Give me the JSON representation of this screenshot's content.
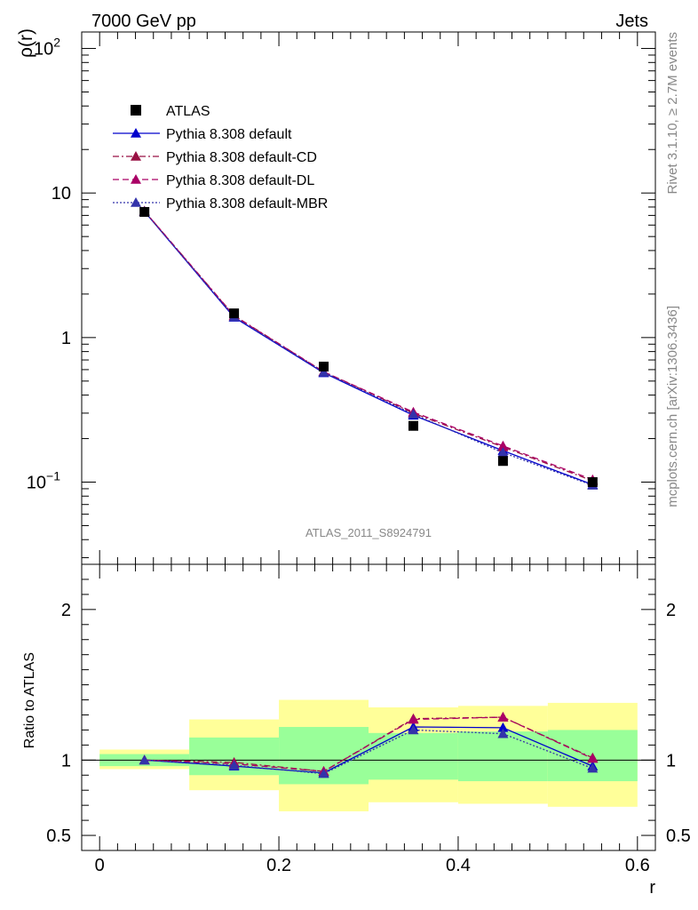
{
  "header": {
    "left": "7000 GeV pp",
    "right": "Jets"
  },
  "side_texts": {
    "rivet": "Rivet 3.1.10, ≥ 2.7M events",
    "mcplots": "mcplots.cern.ch [arXiv:1306.3436]"
  },
  "watermark": "ATLAS_2011_S8924791",
  "chart_data": [
    {
      "type": "scatter",
      "panel": "main",
      "ylabel": "ρ(r)",
      "yscale": "log",
      "xlim": [
        -0.02,
        0.62
      ],
      "ylim": [
        0.027,
        130
      ],
      "y_tick_labels": [
        {
          "value": 0.1,
          "base": "10",
          "exp": "−1"
        },
        {
          "value": 1,
          "text": "1"
        },
        {
          "value": 10,
          "text": "10"
        },
        {
          "value": 100,
          "base": "10",
          "exp": "2"
        }
      ],
      "legend_position": "top-left",
      "x": [
        0.05,
        0.15,
        0.25,
        0.35,
        0.45,
        0.55
      ],
      "series": [
        {
          "name": "ATLAS",
          "kind": "data",
          "color": "#000000",
          "marker": "square",
          "values": [
            7.4,
            1.47,
            0.63,
            0.245,
            0.14,
            0.1
          ]
        },
        {
          "name": "Pythia 8.308 default",
          "kind": "mc",
          "color": "#0000cc",
          "dash": "solid",
          "marker": "triangle",
          "values": [
            7.45,
            1.38,
            0.57,
            0.29,
            0.165,
            0.096
          ]
        },
        {
          "name": "Pythia 8.308 default-CD",
          "kind": "mc",
          "color": "#991144",
          "dash": "dashdot",
          "marker": "triangle",
          "values": [
            7.5,
            1.42,
            0.58,
            0.3,
            0.175,
            0.102
          ]
        },
        {
          "name": "Pythia 8.308 default-DL",
          "kind": "mc",
          "color": "#aa0066",
          "dash": "dashed",
          "marker": "triangle",
          "values": [
            7.5,
            1.41,
            0.58,
            0.305,
            0.178,
            0.104
          ]
        },
        {
          "name": "Pythia 8.308 default-MBR",
          "kind": "mc",
          "color": "#3333aa",
          "dash": "dotted",
          "marker": "triangle",
          "values": [
            7.45,
            1.39,
            0.575,
            0.295,
            0.16,
            0.095
          ]
        }
      ]
    },
    {
      "type": "line",
      "panel": "ratio",
      "ylabel": "Ratio to ATLAS",
      "xlabel": "r",
      "xlim": [
        -0.02,
        0.62
      ],
      "ylim": [
        0.4,
        2.3
      ],
      "y_tick_labels": [
        0.5,
        1,
        2
      ],
      "x_tick_labels": [
        "0",
        "0.2",
        "0.4",
        "0.6"
      ],
      "x_tick_values": [
        0,
        0.2,
        0.4,
        0.6
      ],
      "x": [
        0.05,
        0.15,
        0.25,
        0.35,
        0.45,
        0.55
      ],
      "bins": [
        [
          0.0,
          0.1
        ],
        [
          0.1,
          0.2
        ],
        [
          0.2,
          0.3
        ],
        [
          0.3,
          0.4
        ],
        [
          0.4,
          0.5
        ],
        [
          0.5,
          0.6
        ]
      ],
      "band_total": [
        [
          0.94,
          1.07
        ],
        [
          0.8,
          1.27
        ],
        [
          0.66,
          1.4
        ],
        [
          0.72,
          1.35
        ],
        [
          0.71,
          1.36
        ],
        [
          0.69,
          1.38
        ]
      ],
      "band_stat": [
        [
          0.96,
          1.04
        ],
        [
          0.9,
          1.15
        ],
        [
          0.84,
          1.22
        ],
        [
          0.87,
          1.18
        ],
        [
          0.86,
          1.19
        ],
        [
          0.86,
          1.2
        ]
      ],
      "band_total_color": "#ffff99",
      "band_stat_color": "#99ff99",
      "series": [
        {
          "name": "Pythia 8.308 default",
          "color": "#0000cc",
          "dash": "solid",
          "values": [
            1.0,
            0.96,
            0.915,
            1.22,
            1.215,
            0.96
          ]
        },
        {
          "name": "Pythia 8.308 default-CD",
          "color": "#991144",
          "dash": "dashdot",
          "values": [
            1.0,
            0.985,
            0.925,
            1.275,
            1.285,
            1.015
          ]
        },
        {
          "name": "Pythia 8.308 default-DL",
          "color": "#aa0066",
          "dash": "dashed",
          "values": [
            1.0,
            0.975,
            0.925,
            1.27,
            1.285,
            1.01
          ]
        },
        {
          "name": "Pythia 8.308 default-MBR",
          "color": "#3333aa",
          "dash": "dotted",
          "values": [
            1.0,
            0.965,
            0.91,
            1.2,
            1.175,
            0.945
          ]
        }
      ]
    }
  ]
}
